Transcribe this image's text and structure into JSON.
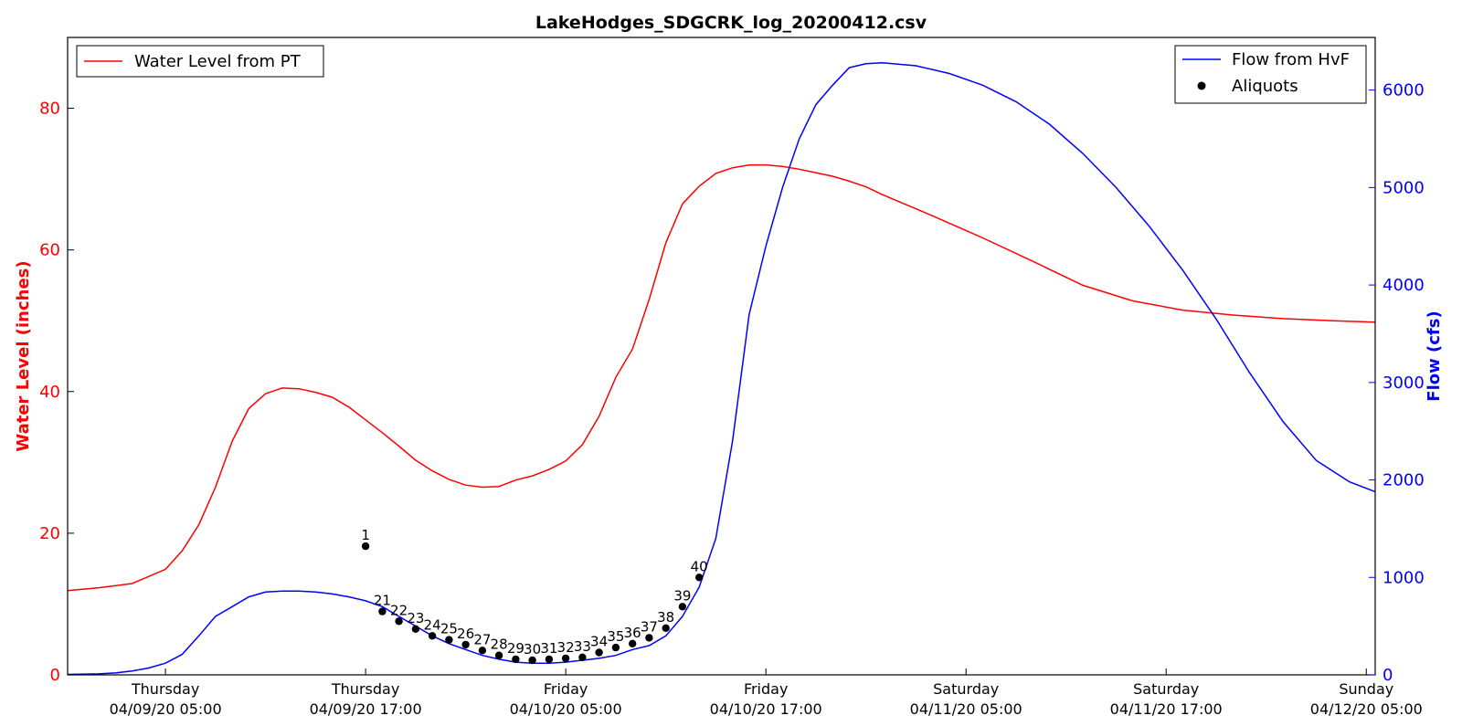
{
  "chart_data": {
    "type": "line",
    "title": "LakeHodges_SDGCRK_log_20200412.csv",
    "ylabel_left": "Water Level (inches)",
    "ylabel_right": "Flow (cfs)",
    "ylim_left": [
      0,
      90
    ],
    "ylim_right": [
      0,
      6540
    ],
    "xlim": [
      "2020-04-08 23:08",
      "2020-04-12 05:32"
    ],
    "yticks_left": [
      0,
      20,
      40,
      60,
      80
    ],
    "yticks_right": [
      0,
      1000,
      2000,
      3000,
      4000,
      5000,
      6000
    ],
    "xticks": [
      {
        "t": "2020-04-09 05:00",
        "day": "Thursday",
        "date": "04/09/20 05:00"
      },
      {
        "t": "2020-04-09 17:00",
        "day": "Thursday",
        "date": "04/09/20 17:00"
      },
      {
        "t": "2020-04-10 05:00",
        "day": "Friday",
        "date": "04/10/20 05:00"
      },
      {
        "t": "2020-04-10 17:00",
        "day": "Friday",
        "date": "04/10/20 17:00"
      },
      {
        "t": "2020-04-11 05:00",
        "day": "Saturday",
        "date": "04/11/20 05:00"
      },
      {
        "t": "2020-04-11 17:00",
        "day": "Saturday",
        "date": "04/11/20 17:00"
      },
      {
        "t": "2020-04-12 05:00",
        "day": "Sunday",
        "date": "04/12/20 05:00"
      }
    ],
    "legend_left": {
      "position": "top-left",
      "entries": [
        "Water Level from PT"
      ]
    },
    "legend_right": {
      "position": "top-right",
      "entries": [
        "Flow from HvF",
        "Aliquots"
      ]
    },
    "colors": {
      "water_level": "#ff0000",
      "flow": "#0000ff",
      "aliquots": "#000000"
    },
    "series": [
      {
        "name": "Water Level from PT",
        "axis": "left",
        "x": [
          "2020-04-08 23:08",
          "2020-04-09 01:00",
          "2020-04-09 03:00",
          "2020-04-09 05:00",
          "2020-04-09 06:00",
          "2020-04-09 07:00",
          "2020-04-09 08:00",
          "2020-04-09 09:00",
          "2020-04-09 10:00",
          "2020-04-09 11:00",
          "2020-04-09 12:00",
          "2020-04-09 13:00",
          "2020-04-09 14:00",
          "2020-04-09 15:00",
          "2020-04-09 16:00",
          "2020-04-09 17:00",
          "2020-04-09 18:00",
          "2020-04-09 19:00",
          "2020-04-09 20:00",
          "2020-04-09 21:00",
          "2020-04-09 22:00",
          "2020-04-09 23:00",
          "2020-04-10 00:00",
          "2020-04-10 01:00",
          "2020-04-10 02:00",
          "2020-04-10 03:00",
          "2020-04-10 04:00",
          "2020-04-10 05:00",
          "2020-04-10 06:00",
          "2020-04-10 07:00",
          "2020-04-10 08:00",
          "2020-04-10 09:00",
          "2020-04-10 10:00",
          "2020-04-10 11:00",
          "2020-04-10 12:00",
          "2020-04-10 13:00",
          "2020-04-10 14:00",
          "2020-04-10 15:00",
          "2020-04-10 16:00",
          "2020-04-10 17:00",
          "2020-04-10 18:00",
          "2020-04-10 19:00",
          "2020-04-10 20:00",
          "2020-04-10 21:00",
          "2020-04-10 22:00",
          "2020-04-10 23:00",
          "2020-04-11 00:00",
          "2020-04-11 03:00",
          "2020-04-11 06:00",
          "2020-04-11 09:00",
          "2020-04-11 12:00",
          "2020-04-11 15:00",
          "2020-04-11 18:00",
          "2020-04-11 21:00",
          "2020-04-12 00:00",
          "2020-04-12 03:00",
          "2020-04-12 05:32"
        ],
        "values": [
          11.9,
          12.3,
          12.9,
          14.9,
          17.5,
          21.2,
          26.5,
          33.0,
          37.6,
          39.7,
          40.5,
          40.4,
          39.9,
          39.2,
          37.8,
          36.0,
          34.2,
          32.3,
          30.3,
          28.8,
          27.6,
          26.8,
          26.5,
          26.6,
          27.5,
          28.1,
          29.0,
          30.2,
          32.5,
          36.5,
          42.0,
          46.0,
          53.0,
          61.0,
          66.5,
          69.0,
          70.8,
          71.6,
          72.0,
          72.0,
          71.8,
          71.4,
          70.9,
          70.4,
          69.7,
          68.9,
          67.8,
          64.8,
          61.7,
          58.4,
          55.0,
          52.8,
          51.5,
          50.8,
          50.3,
          50.0,
          49.8
        ]
      },
      {
        "name": "Flow from HvF",
        "axis": "right",
        "x": [
          "2020-04-08 23:08",
          "2020-04-09 01:00",
          "2020-04-09 02:00",
          "2020-04-09 03:00",
          "2020-04-09 04:00",
          "2020-04-09 05:00",
          "2020-04-09 06:00",
          "2020-04-09 07:00",
          "2020-04-09 08:00",
          "2020-04-09 09:00",
          "2020-04-09 10:00",
          "2020-04-09 11:00",
          "2020-04-09 12:00",
          "2020-04-09 13:00",
          "2020-04-09 14:00",
          "2020-04-09 15:00",
          "2020-04-09 16:00",
          "2020-04-09 17:00",
          "2020-04-09 18:00",
          "2020-04-09 19:00",
          "2020-04-09 20:00",
          "2020-04-09 21:00",
          "2020-04-09 22:00",
          "2020-04-09 23:00",
          "2020-04-10 00:00",
          "2020-04-10 01:00",
          "2020-04-10 02:00",
          "2020-04-10 03:00",
          "2020-04-10 04:00",
          "2020-04-10 05:00",
          "2020-04-10 06:00",
          "2020-04-10 07:00",
          "2020-04-10 08:00",
          "2020-04-10 09:00",
          "2020-04-10 10:00",
          "2020-04-10 11:00",
          "2020-04-10 12:00",
          "2020-04-10 13:00",
          "2020-04-10 14:00",
          "2020-04-10 15:00",
          "2020-04-10 16:00",
          "2020-04-10 17:00",
          "2020-04-10 18:00",
          "2020-04-10 19:00",
          "2020-04-10 20:00",
          "2020-04-10 21:00",
          "2020-04-10 22:00",
          "2020-04-10 23:00",
          "2020-04-11 00:00",
          "2020-04-11 02:00",
          "2020-04-11 04:00",
          "2020-04-11 06:00",
          "2020-04-11 08:00",
          "2020-04-11 10:00",
          "2020-04-11 12:00",
          "2020-04-11 14:00",
          "2020-04-11 16:00",
          "2020-04-11 18:00",
          "2020-04-11 20:00",
          "2020-04-11 22:00",
          "2020-04-12 00:00",
          "2020-04-12 02:00",
          "2020-04-12 04:00",
          "2020-04-12 05:32"
        ],
        "values": [
          5,
          10,
          20,
          40,
          70,
          120,
          210,
          400,
          600,
          700,
          800,
          850,
          860,
          860,
          850,
          830,
          800,
          760,
          700,
          600,
          500,
          400,
          320,
          260,
          200,
          160,
          130,
          120,
          120,
          130,
          150,
          170,
          200,
          260,
          300,
          400,
          600,
          900,
          1400,
          2400,
          3700,
          4400,
          5000,
          5500,
          5850,
          6050,
          6230,
          6270,
          6280,
          6250,
          6170,
          6050,
          5880,
          5650,
          5350,
          5000,
          4600,
          4150,
          3650,
          3100,
          2600,
          2200,
          1980,
          1880
        ]
      },
      {
        "name": "Aliquots",
        "axis": "right",
        "x": [
          "2020-04-09 17:00",
          "2020-04-09 18:00",
          "2020-04-09 19:00",
          "2020-04-09 20:00",
          "2020-04-09 21:00",
          "2020-04-09 22:00",
          "2020-04-09 23:00",
          "2020-04-10 00:00",
          "2020-04-10 01:00",
          "2020-04-10 02:00",
          "2020-04-10 03:00",
          "2020-04-10 04:00",
          "2020-04-10 05:00",
          "2020-04-10 06:00",
          "2020-04-10 07:00",
          "2020-04-10 08:00",
          "2020-04-10 09:00",
          "2020-04-10 10:00",
          "2020-04-10 11:00",
          "2020-04-10 12:00",
          "2020-04-10 13:00"
        ],
        "labels": [
          "1",
          "21",
          "22",
          "23",
          "24",
          "25",
          "26",
          "27",
          "28",
          "29",
          "30",
          "31",
          "32",
          "33",
          "34",
          "35",
          "36",
          "37",
          "38",
          "39",
          "40"
        ],
        "values": [
          1320,
          650,
          550,
          470,
          400,
          360,
          310,
          250,
          200,
          160,
          150,
          160,
          170,
          180,
          230,
          280,
          320,
          380,
          480,
          700,
          1000
        ]
      }
    ]
  }
}
